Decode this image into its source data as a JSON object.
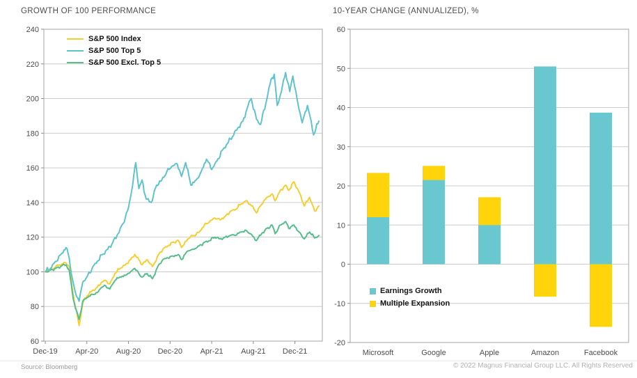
{
  "footer": {
    "source": "Source: Bloomberg",
    "copyright": "© 2022 Magnus Financial Group LLC. All Rights Reserved"
  },
  "style_colors": {
    "grid": "#cccccc",
    "plot_border": "#b3b3b3",
    "tick": "#8c8c8c",
    "axis_text": "#4d4d4d"
  },
  "chart_data": [
    {
      "type": "line",
      "title": "GROWTH OF 100 PERFORMANCE",
      "x_unit": "months since Dec-19",
      "xlim": [
        0,
        26.5
      ],
      "ylim": [
        60,
        240
      ],
      "ytick_step": 20,
      "grid": true,
      "legend_position": "inside-top-left",
      "x_ticks": [
        {
          "t": 0,
          "label": "Dec-19"
        },
        {
          "t": 4,
          "label": "Apr-20"
        },
        {
          "t": 8,
          "label": "Aug-20"
        },
        {
          "t": 12,
          "label": "Dec-20"
        },
        {
          "t": 16,
          "label": "Apr-21"
        },
        {
          "t": 20,
          "label": "Aug-21"
        },
        {
          "t": 24,
          "label": "Dec-21"
        }
      ],
      "series": [
        {
          "name": "S&P 500 Index",
          "color": "#F5CE32",
          "points": [
            [
              0,
              100
            ],
            [
              0.5,
              101
            ],
            [
              1,
              103
            ],
            [
              1.6,
              104.5
            ],
            [
              2,
              105
            ],
            [
              2.3,
              103
            ],
            [
              2.6,
              90
            ],
            [
              2.9,
              80
            ],
            [
              3.25,
              69
            ],
            [
              3.6,
              82
            ],
            [
              4,
              86
            ],
            [
              4.5,
              89
            ],
            [
              5,
              91
            ],
            [
              5.4,
              94
            ],
            [
              5.8,
              95
            ],
            [
              6.2,
              93
            ],
            [
              6.7,
              99
            ],
            [
              7.2,
              102
            ],
            [
              7.7,
              104
            ],
            [
              8.2,
              107
            ],
            [
              8.6,
              110
            ],
            [
              9,
              107
            ],
            [
              9.3,
              104
            ],
            [
              9.8,
              107
            ],
            [
              10.3,
              103
            ],
            [
              10.9,
              110
            ],
            [
              11.3,
              113
            ],
            [
              11.8,
              115
            ],
            [
              12.3,
              117
            ],
            [
              12.8,
              118
            ],
            [
              13.1,
              114
            ],
            [
              13.7,
              119
            ],
            [
              14.3,
              121
            ],
            [
              14.8,
              123
            ],
            [
              15.3,
              127
            ],
            [
              15.8,
              129
            ],
            [
              16.3,
              131
            ],
            [
              16.8,
              130
            ],
            [
              17.3,
              132
            ],
            [
              17.8,
              135
            ],
            [
              18.3,
              136
            ],
            [
              18.8,
              139
            ],
            [
              19.3,
              141
            ],
            [
              19.7,
              139
            ],
            [
              20.3,
              134
            ],
            [
              20.8,
              139
            ],
            [
              21.3,
              143
            ],
            [
              21.8,
              145
            ],
            [
              22.1,
              141
            ],
            [
              22.6,
              147
            ],
            [
              23.1,
              150
            ],
            [
              23.4,
              147
            ],
            [
              23.9,
              152
            ],
            [
              24.4,
              146
            ],
            [
              24.9,
              138
            ],
            [
              25.4,
              143
            ],
            [
              25.9,
              135
            ],
            [
              26.3,
              138
            ]
          ]
        },
        {
          "name": "S&P 500 Top 5",
          "color": "#5FC3CB",
          "points": [
            [
              0,
              100
            ],
            [
              0.5,
              102
            ],
            [
              1,
              106
            ],
            [
              1.5,
              110
            ],
            [
              2,
              114
            ],
            [
              2.3,
              108
            ],
            [
              2.6,
              96
            ],
            [
              2.9,
              88
            ],
            [
              3.25,
              83
            ],
            [
              3.6,
              94
            ],
            [
              4,
              97
            ],
            [
              4.5,
              102
            ],
            [
              5,
              106
            ],
            [
              5.5,
              110
            ],
            [
              6,
              113
            ],
            [
              6.5,
              117
            ],
            [
              7,
              122
            ],
            [
              7.5,
              128
            ],
            [
              8,
              137
            ],
            [
              8.4,
              150
            ],
            [
              8.7,
              163
            ],
            [
              9,
              148
            ],
            [
              9.3,
              153
            ],
            [
              9.7,
              142
            ],
            [
              10.2,
              140
            ],
            [
              10.7,
              150
            ],
            [
              11.2,
              153
            ],
            [
              11.7,
              158
            ],
            [
              12.2,
              161
            ],
            [
              12.7,
              162
            ],
            [
              13.1,
              155
            ],
            [
              13.5,
              163
            ],
            [
              14,
              150
            ],
            [
              14.5,
              153
            ],
            [
              15,
              158
            ],
            [
              15.5,
              165
            ],
            [
              16,
              159
            ],
            [
              16.5,
              164
            ],
            [
              17,
              170
            ],
            [
              17.5,
              174
            ],
            [
              18,
              178
            ],
            [
              18.5,
              183
            ],
            [
              19,
              187
            ],
            [
              19.5,
              196
            ],
            [
              19.8,
              200
            ],
            [
              20.3,
              188
            ],
            [
              20.7,
              185
            ],
            [
              21.2,
              197
            ],
            [
              21.7,
              211
            ],
            [
              22,
              214
            ],
            [
              22.3,
              196
            ],
            [
              22.7,
              204
            ],
            [
              23.1,
              215
            ],
            [
              23.5,
              204
            ],
            [
              23.8,
              213
            ],
            [
              24.2,
              200
            ],
            [
              24.7,
              186
            ],
            [
              25.2,
              196
            ],
            [
              25.8,
              179
            ],
            [
              26.3,
              187
            ]
          ]
        },
        {
          "name": "S&P 500 Excl. Top 5",
          "color": "#56BD8B",
          "points": [
            [
              0,
              100
            ],
            [
              0.5,
              101
            ],
            [
              1,
              102
            ],
            [
              1.6,
              103.5
            ],
            [
              2,
              104
            ],
            [
              2.3,
              101
            ],
            [
              2.6,
              88
            ],
            [
              2.9,
              79
            ],
            [
              3.25,
              72.5
            ],
            [
              3.6,
              83
            ],
            [
              4,
              85
            ],
            [
              4.5,
              87
            ],
            [
              5,
              88
            ],
            [
              5.4,
              91
            ],
            [
              5.8,
              92
            ],
            [
              6.2,
              90
            ],
            [
              6.7,
              95
            ],
            [
              7.2,
              97
            ],
            [
              7.7,
              98
            ],
            [
              8.2,
              100
            ],
            [
              8.6,
              102
            ],
            [
              9,
              99
            ],
            [
              9.3,
              97
            ],
            [
              9.8,
              99
            ],
            [
              10.3,
              96
            ],
            [
              10.9,
              104
            ],
            [
              11.3,
              107
            ],
            [
              11.8,
              108
            ],
            [
              12.3,
              109
            ],
            [
              12.8,
              110
            ],
            [
              13.1,
              107
            ],
            [
              13.7,
              112
            ],
            [
              14.3,
              113
            ],
            [
              14.8,
              115
            ],
            [
              15.3,
              117
            ],
            [
              15.8,
              118
            ],
            [
              16.3,
              120
            ],
            [
              16.8,
              119
            ],
            [
              17.3,
              120
            ],
            [
              17.8,
              121
            ],
            [
              18.3,
              121
            ],
            [
              18.8,
              123
            ],
            [
              19.3,
              124
            ],
            [
              19.7,
              122
            ],
            [
              20.3,
              118
            ],
            [
              20.8,
              122
            ],
            [
              21.3,
              125
            ],
            [
              21.8,
              127
            ],
            [
              22.1,
              122
            ],
            [
              22.6,
              127
            ],
            [
              23.1,
              129
            ],
            [
              23.4,
              125
            ],
            [
              23.9,
              127
            ],
            [
              24.4,
              123
            ],
            [
              24.9,
              119
            ],
            [
              25.4,
              123
            ],
            [
              25.9,
              119.5
            ],
            [
              26.3,
              121
            ]
          ]
        }
      ]
    },
    {
      "type": "bar",
      "stacked": true,
      "title": "10-YEAR CHANGE (ANNUALIZED), %",
      "categories": [
        "Microsoft",
        "Google",
        "Apple",
        "Amazon",
        "Facebook"
      ],
      "ylim": [
        -20,
        60
      ],
      "ytick_step": 10,
      "grid": true,
      "legend_position": "inside-bottom-left",
      "series": [
        {
          "name": "Earnings Growth",
          "color": "#69C7CF",
          "values": [
            12,
            21.5,
            10,
            50.5,
            38.7
          ]
        },
        {
          "name": "Multiple Expansion",
          "color": "#FFD40A",
          "values": [
            11.3,
            3.6,
            7.1,
            -8.3,
            -16
          ]
        }
      ]
    }
  ]
}
